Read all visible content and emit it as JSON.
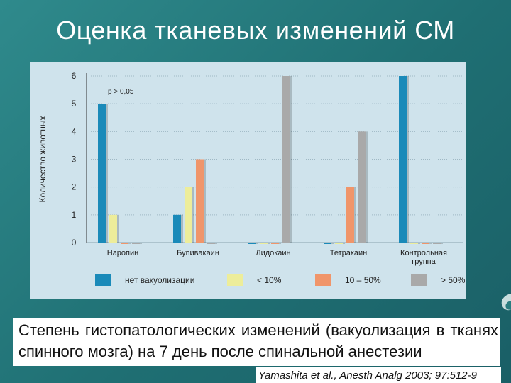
{
  "slide": {
    "title": "Оценка тканевых изменений СМ",
    "caption": "Степень гистопатологических изменений (вакуолизация в тканях спинного мозга) на 7 день после спинальной анестезии",
    "citation": "Yamashita et al., Anesth Analg 2003; 97:512-9"
  },
  "chart_data": {
    "type": "bar",
    "title": "",
    "xlabel": "",
    "ylabel": "Количество животных",
    "ylim": [
      0,
      6
    ],
    "yticks": [
      0,
      1,
      2,
      3,
      4,
      5,
      6
    ],
    "grid": true,
    "annotation": "p > 0,05",
    "legend_position": "bottom",
    "categories": [
      "Наропин",
      "Бупивакаин",
      "Лидокаин",
      "Тетракаин",
      "Контрольная группа"
    ],
    "series": [
      {
        "name": "нет вакуолизации",
        "color": "#1a8ab9",
        "values": [
          5,
          1,
          0,
          0,
          6
        ]
      },
      {
        "name": "< 10%",
        "color": "#eded9a",
        "values": [
          1,
          2,
          0,
          0,
          0
        ]
      },
      {
        "name": "10 – 50%",
        "color": "#f0956a",
        "values": [
          0,
          3,
          0,
          2,
          0
        ]
      },
      {
        "name": "> 50%",
        "color": "#a9a9a9",
        "values": [
          0,
          0,
          6,
          4,
          0
        ]
      }
    ]
  }
}
